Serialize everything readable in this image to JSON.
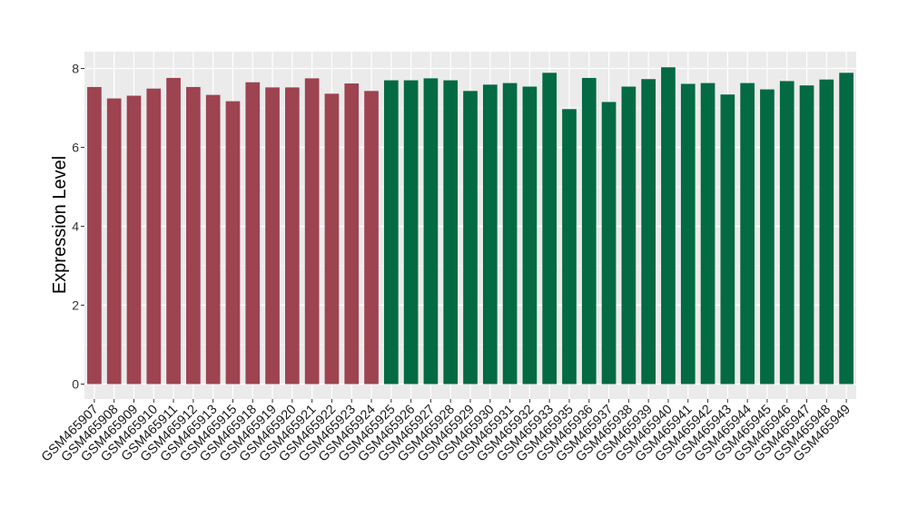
{
  "chart_data": {
    "type": "bar",
    "title": "",
    "xlabel": "",
    "ylabel": "Expression Level",
    "ylim": [
      0,
      8.1
    ],
    "yticks": [
      0,
      2,
      4,
      6,
      8
    ],
    "grid": true,
    "legend": "none",
    "colors": {
      "group_a": "#9e4350",
      "group_b": "#036a43",
      "panel": "#ebebeb",
      "gridline": "#ffffff"
    },
    "categories": [
      "GSM465907",
      "GSM465908",
      "GSM465909",
      "GSM465910",
      "GSM465911",
      "GSM465912",
      "GSM465913",
      "GSM465915",
      "GSM465918",
      "GSM465919",
      "GSM465920",
      "GSM465921",
      "GSM465922",
      "GSM465923",
      "GSM465924",
      "GSM465925",
      "GSM465926",
      "GSM465927",
      "GSM465928",
      "GSM465929",
      "GSM465930",
      "GSM465931",
      "GSM465932",
      "GSM465933",
      "GSM465935",
      "GSM465936",
      "GSM465937",
      "GSM465938",
      "GSM465939",
      "GSM465940",
      "GSM465941",
      "GSM465942",
      "GSM465943",
      "GSM465944",
      "GSM465945",
      "GSM465946",
      "GSM465947",
      "GSM465948",
      "GSM465949"
    ],
    "values": [
      7.53,
      7.24,
      7.31,
      7.49,
      7.76,
      7.53,
      7.33,
      7.17,
      7.65,
      7.52,
      7.52,
      7.75,
      7.36,
      7.62,
      7.43,
      7.7,
      7.7,
      7.75,
      7.7,
      7.43,
      7.59,
      7.63,
      7.54,
      7.89,
      6.97,
      7.76,
      7.15,
      7.54,
      7.73,
      8.03,
      7.61,
      7.63,
      7.34,
      7.63,
      7.47,
      7.68,
      7.57,
      7.72,
      7.89
    ],
    "groups": [
      "a",
      "a",
      "a",
      "a",
      "a",
      "a",
      "a",
      "a",
      "a",
      "a",
      "a",
      "a",
      "a",
      "a",
      "a",
      "b",
      "b",
      "b",
      "b",
      "b",
      "b",
      "b",
      "b",
      "b",
      "b",
      "b",
      "b",
      "b",
      "b",
      "b",
      "b",
      "b",
      "b",
      "b",
      "b",
      "b",
      "b",
      "b",
      "b"
    ]
  }
}
